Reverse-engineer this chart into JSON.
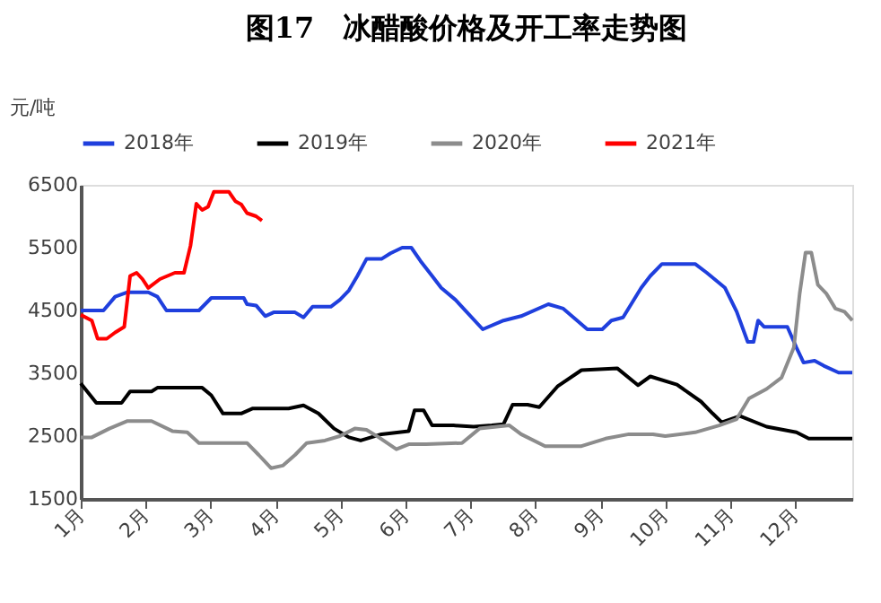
{
  "chart_data": {
    "type": "line",
    "title": "图17　冰醋酸价格及开工率走势图",
    "ylabel": "元/吨",
    "xlim": [
      1,
      12.88
    ],
    "xticks": [
      {
        "value": 1,
        "label": "1月"
      },
      {
        "value": 2,
        "label": "2月"
      },
      {
        "value": 3,
        "label": "3月"
      },
      {
        "value": 4,
        "label": "4月"
      },
      {
        "value": 5,
        "label": "5月"
      },
      {
        "value": 6,
        "label": "6月"
      },
      {
        "value": 7,
        "label": "7月"
      },
      {
        "value": 8,
        "label": "8月"
      },
      {
        "value": 9,
        "label": "9月"
      },
      {
        "value": 10,
        "label": "10月"
      },
      {
        "value": 11,
        "label": "11月"
      },
      {
        "value": 12,
        "label": "12月"
      }
    ],
    "ylim": [
      1500,
      6500
    ],
    "yticks": [
      1500,
      2500,
      3500,
      4500,
      5500,
      6500
    ],
    "grid": false,
    "legend": "top",
    "marker": "none",
    "line_style": "solid",
    "series": [
      {
        "name": "2018年",
        "color": "#1f3fdd",
        "x": [
          1.0,
          1.35,
          1.53,
          1.72,
          2.04,
          2.18,
          2.32,
          2.82,
          3.01,
          3.51,
          3.56,
          3.7,
          3.84,
          3.97,
          4.3,
          4.43,
          4.57,
          4.85,
          4.99,
          5.13,
          5.26,
          5.4,
          5.63,
          5.77,
          5.95,
          6.09,
          6.23,
          6.41,
          6.55,
          6.77,
          7.19,
          7.51,
          7.78,
          8.2,
          8.43,
          8.8,
          9.03,
          9.17,
          9.35,
          9.63,
          9.77,
          9.95,
          10.46,
          10.64,
          10.92,
          11.1,
          11.27,
          11.36,
          11.43,
          11.52,
          11.88,
          12.02,
          12.13,
          12.3,
          12.44,
          12.67,
          12.88
        ],
        "values": [
          4500,
          4500,
          4720,
          4790,
          4790,
          4720,
          4500,
          4500,
          4700,
          4700,
          4600,
          4580,
          4410,
          4470,
          4470,
          4390,
          4560,
          4560,
          4670,
          4820,
          5050,
          5320,
          5320,
          5410,
          5500,
          5500,
          5290,
          5050,
          4860,
          4670,
          4200,
          4340,
          4410,
          4600,
          4530,
          4200,
          4200,
          4340,
          4390,
          4860,
          5050,
          5240,
          5240,
          5100,
          4860,
          4480,
          4000,
          4000,
          4340,
          4240,
          4240,
          3910,
          3670,
          3700,
          3620,
          3510,
          3510
        ]
      },
      {
        "name": "2019年",
        "color": "#000000",
        "x": [
          1.0,
          1.24,
          1.63,
          1.76,
          2.09,
          2.18,
          2.87,
          3.01,
          3.19,
          3.47,
          3.65,
          4.2,
          4.43,
          4.66,
          4.9,
          5.13,
          5.31,
          5.63,
          6.05,
          6.14,
          6.28,
          6.41,
          6.74,
          7.05,
          7.33,
          7.51,
          7.65,
          7.88,
          8.06,
          8.34,
          8.71,
          9.26,
          9.58,
          9.77,
          10.18,
          10.55,
          10.73,
          10.87,
          11.15,
          11.56,
          12.02,
          12.21,
          12.88
        ],
        "values": [
          3340,
          3030,
          3030,
          3210,
          3210,
          3270,
          3270,
          3150,
          2860,
          2860,
          2940,
          2940,
          2990,
          2860,
          2620,
          2480,
          2430,
          2530,
          2580,
          2910,
          2910,
          2670,
          2670,
          2650,
          2670,
          2690,
          3000,
          3000,
          2960,
          3290,
          3550,
          3580,
          3310,
          3450,
          3320,
          3050,
          2860,
          2720,
          2820,
          2650,
          2560,
          2460,
          2460
        ]
      },
      {
        "name": "2020年",
        "color": "#8c8c8c",
        "x": [
          1.0,
          1.17,
          1.44,
          1.72,
          2.09,
          2.41,
          2.64,
          2.82,
          3.28,
          3.56,
          3.74,
          3.93,
          4.11,
          4.3,
          4.48,
          4.76,
          4.99,
          5.22,
          5.4,
          5.59,
          5.86,
          6.05,
          6.32,
          6.87,
          7.14,
          7.6,
          7.78,
          8.15,
          8.71,
          9.08,
          9.44,
          9.81,
          10.0,
          10.46,
          10.83,
          11.1,
          11.29,
          11.56,
          11.79,
          11.98,
          12.07,
          12.16,
          12.25,
          12.35,
          12.48,
          12.62,
          12.76,
          12.88
        ],
        "values": [
          2480,
          2480,
          2620,
          2740,
          2740,
          2580,
          2560,
          2390,
          2390,
          2390,
          2200,
          1990,
          2030,
          2200,
          2390,
          2430,
          2500,
          2620,
          2600,
          2480,
          2290,
          2370,
          2370,
          2390,
          2620,
          2670,
          2530,
          2340,
          2340,
          2460,
          2530,
          2530,
          2500,
          2560,
          2670,
          2770,
          3100,
          3250,
          3430,
          3910,
          4770,
          5420,
          5420,
          4910,
          4770,
          4530,
          4480,
          4340
        ]
      },
      {
        "name": "2021年",
        "color": "#ff0000",
        "x": [
          1.0,
          1.17,
          1.26,
          1.4,
          1.53,
          1.67,
          1.76,
          1.86,
          1.95,
          2.04,
          2.22,
          2.45,
          2.59,
          2.69,
          2.78,
          2.87,
          2.96,
          3.05,
          3.28,
          3.38,
          3.47,
          3.56,
          3.7,
          3.79
        ],
        "values": [
          4430,
          4340,
          4050,
          4050,
          4150,
          4240,
          5050,
          5100,
          5000,
          4860,
          5000,
          5100,
          5100,
          5530,
          6200,
          6100,
          6150,
          6390,
          6390,
          6240,
          6190,
          6050,
          6000,
          5930
        ]
      }
    ]
  }
}
